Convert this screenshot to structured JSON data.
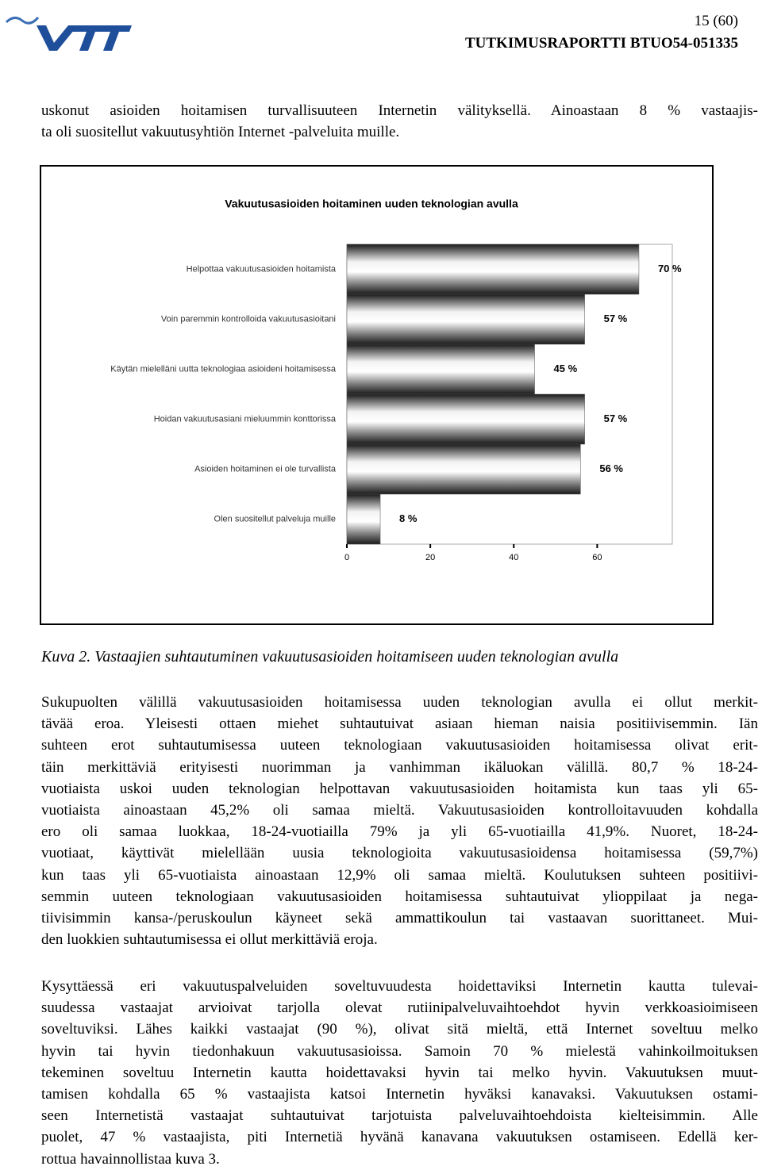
{
  "header": {
    "page": "15 (60)",
    "report": "TUTKIMUSRAPORTTI BTUO54-051335"
  },
  "intro": [
    "uskonut asioiden hoitamisen turvallisuuteen Internetin välityksellä. Ainoastaan 8 % vastaajis-",
    "ta oli suositellut vakuutusyhtiön Internet -palveluita muille."
  ],
  "chart_data": {
    "type": "hbar",
    "title": "Vakuutusasioiden hoitaminen uuden teknologian avulla",
    "categories": [
      "Helpottaa vakuutusasioiden hoitamista",
      "Voin paremmin kontrolloida vakuutusasioitani",
      "Käytän mielelläni uutta teknologiaa asioideni hoitamisessa",
      "Hoidan vakuutusasiani mieluummin konttorissa",
      "Asioiden hoitaminen ei ole turvallista",
      "Olen suositellut palveluja muille"
    ],
    "values": [
      70,
      57,
      45,
      57,
      56,
      8
    ],
    "value_labels": [
      "70 %",
      "57 %",
      "45 %",
      "57 %",
      "56 %",
      "8 %"
    ],
    "xlim": [
      0,
      78
    ],
    "xticks": [
      0,
      20,
      40,
      60
    ]
  },
  "caption": "Kuva 2. Vastaajien suhtautuminen vakuutusasioiden hoitamiseen uuden teknologian avulla",
  "paragraphs": [
    [
      "Sukupuolten välillä vakuutusasioiden hoitamisessa uuden teknologian avulla ei ollut merkit-",
      "tävää eroa. Yleisesti ottaen miehet suhtautuivat asiaan hieman naisia positiivisemmin. Iän",
      "suhteen erot suhtautumisessa uuteen teknologiaan vakuutusasioiden hoitamisessa olivat erit-",
      "täin merkittäviä erityisesti nuorimman ja vanhimman ikäluokan välillä. 80,7 % 18-24-",
      "vuotiaista uskoi uuden teknologian helpottavan vakuutusasioiden hoitamista kun taas yli 65-",
      "vuotiaista ainoastaan 45,2% oli samaa mieltä. Vakuutusasioiden kontrolloitavuuden kohdalla",
      "ero oli samaa luokkaa, 18-24-vuotiailla 79% ja yli 65-vuotiailla 41,9%. Nuoret, 18-24-",
      "vuotiaat, käyttivät mielellään uusia teknologioita vakuutusasioidensa hoitamisessa (59,7%)",
      "kun taas yli 65-vuotiaista ainoastaan 12,9% oli samaa mieltä. Koulutuksen suhteen positiivi-",
      "semmin uuteen teknologiaan vakuutusasioiden hoitamisessa suhtautuivat ylioppilaat ja nega-",
      "tiivisimmin kansa-/peruskoulun käyneet sekä ammattikoulun tai vastaavan suorittaneet. Mui-",
      "den luokkien suhtautumisessa ei ollut merkittäviä eroja."
    ],
    [
      "Kysyttäessä eri vakuutuspalveluiden soveltuvuudesta hoidettaviksi Internetin kautta tulevai-",
      "suudessa vastaajat arvioivat tarjolla olevat rutiinipalveluvaihtoehdot hyvin verkkoasioimiseen",
      "soveltuviksi. Lähes kaikki vastaajat (90 %), olivat sitä mieltä, että Internet soveltuu melko",
      "hyvin tai hyvin tiedonhakuun vakuutusasioissa. Samoin 70 % mielestä vahinkoilmoituksen",
      "tekeminen soveltuu Internetin kautta hoidettavaksi hyvin tai melko hyvin. Vakuutuksen muut-",
      "tamisen kohdalla 65 % vastaajista katsoi Internetin hyväksi kanavaksi. Vakuutuksen ostami-",
      "seen Internetistä vastaajat suhtautuivat tarjotuista palveluvaihtoehdoista kielteisimmin. Alle",
      "puolet, 47 % vastaajista, piti Internetiä hyvänä kanavana vakuutuksen ostamiseen. Edellä ker-",
      "rottua havainnollistaa kuva 3."
    ]
  ]
}
